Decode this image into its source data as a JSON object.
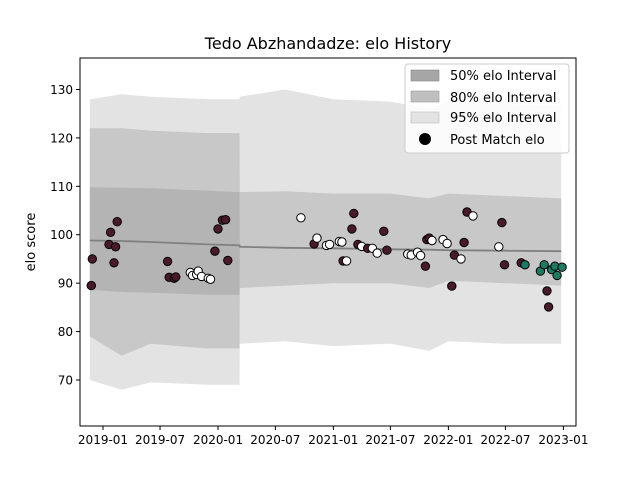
{
  "chart_data": {
    "type": "scatter",
    "title": "Tedo Abzhandadze: elo History",
    "xlabel": "",
    "ylabel": "elo score",
    "xlim": [
      "2018-10-20",
      "2023-02-10"
    ],
    "ylim": [
      60.5,
      136.5
    ],
    "x_ticks": [
      "2019-01",
      "2019-07",
      "2020-01",
      "2020-07",
      "2021-01",
      "2021-07",
      "2022-01",
      "2022-07",
      "2023-01"
    ],
    "x_tick_dates": [
      "2019-01-01",
      "2019-07-01",
      "2020-01-01",
      "2020-07-01",
      "2021-01-01",
      "2021-07-01",
      "2022-01-01",
      "2022-07-01",
      "2023-01-01"
    ],
    "y_ticks": [
      70,
      80,
      90,
      100,
      110,
      120,
      130
    ],
    "legend": {
      "position": "top-right",
      "entries": [
        "50% elo Interval",
        "80% elo Interval",
        "95% elo Interval",
        "Post Match elo"
      ]
    },
    "colors": {
      "band50": "#a6a6a6",
      "band80": "#bfbfbf",
      "band95": "#e3e3e3",
      "mean_line": "#808080",
      "loss": "#4a1a2c",
      "draw": "#ffffff",
      "win": "#1f7a63"
    },
    "bands": {
      "dates": [
        "2018-11-20",
        "2019-03-01",
        "2019-06-01",
        "2019-12-01",
        "2020-03-09",
        "2020-03-10",
        "2020-08-01",
        "2021-01-01",
        "2021-07-01",
        "2021-11-01",
        "2022-01-01",
        "2022-07-01",
        "2022-12-25"
      ],
      "mean": [
        98.8,
        98.7,
        98.5,
        98.0,
        97.8,
        97.5,
        97.3,
        97.2,
        97.0,
        96.9,
        96.8,
        96.7,
        96.6
      ],
      "p50_low": [
        88.6,
        88.2,
        88.0,
        87.6,
        87.6,
        97.5,
        97.3,
        97.2,
        97.0,
        96.9,
        96.8,
        96.7,
        96.6
      ],
      "p50_high": [
        109.8,
        109.7,
        109.6,
        109.1,
        108.8,
        97.5,
        97.3,
        97.2,
        97.0,
        96.9,
        96.8,
        96.7,
        96.6
      ],
      "p80_low": [
        79.0,
        75.0,
        77.5,
        76.5,
        76.5,
        89.0,
        89.5,
        90.0,
        90.0,
        89.0,
        90.5,
        90.0,
        89.5
      ],
      "p80_high": [
        122.0,
        122.0,
        121.5,
        121.0,
        121.0,
        108.8,
        109.0,
        108.5,
        108.5,
        107.5,
        108.5,
        108.0,
        107.5
      ],
      "p95_low": [
        70.0,
        68.0,
        69.5,
        69.0,
        69.0,
        77.5,
        78.0,
        77.0,
        77.5,
        76.0,
        78.0,
        77.5,
        77.5
      ],
      "p95_high": [
        128.0,
        129.0,
        128.5,
        128.0,
        128.0,
        128.5,
        130.0,
        128.0,
        127.5,
        126.0,
        127.5,
        127.0,
        126.5
      ]
    },
    "series": [
      {
        "name": "Post Match elo",
        "points": [
          {
            "date": "2018-11-25",
            "elo": 89.5,
            "result": "loss"
          },
          {
            "date": "2018-11-28",
            "elo": 95.0,
            "result": "loss"
          },
          {
            "date": "2019-01-20",
            "elo": 98.0,
            "result": "loss"
          },
          {
            "date": "2019-01-25",
            "elo": 100.5,
            "result": "loss"
          },
          {
            "date": "2019-02-05",
            "elo": 94.2,
            "result": "loss"
          },
          {
            "date": "2019-02-10",
            "elo": 97.5,
            "result": "loss"
          },
          {
            "date": "2019-02-15",
            "elo": 102.7,
            "result": "loss"
          },
          {
            "date": "2019-07-25",
            "elo": 94.5,
            "result": "loss"
          },
          {
            "date": "2019-07-30",
            "elo": 91.2,
            "result": "loss"
          },
          {
            "date": "2019-08-15",
            "elo": 91.0,
            "result": "loss"
          },
          {
            "date": "2019-08-20",
            "elo": 91.3,
            "result": "loss"
          },
          {
            "date": "2019-10-05",
            "elo": 92.2,
            "result": "draw"
          },
          {
            "date": "2019-10-12",
            "elo": 91.6,
            "result": "draw"
          },
          {
            "date": "2019-10-25",
            "elo": 91.8,
            "result": "draw"
          },
          {
            "date": "2019-10-30",
            "elo": 92.5,
            "result": "draw"
          },
          {
            "date": "2019-11-10",
            "elo": 91.4,
            "result": "draw"
          },
          {
            "date": "2019-12-01",
            "elo": 91.0,
            "result": "draw"
          },
          {
            "date": "2019-12-08",
            "elo": 90.8,
            "result": "draw"
          },
          {
            "date": "2019-12-22",
            "elo": 96.6,
            "result": "loss"
          },
          {
            "date": "2020-01-01",
            "elo": 101.2,
            "result": "loss"
          },
          {
            "date": "2020-01-15",
            "elo": 103.0,
            "result": "loss"
          },
          {
            "date": "2020-01-25",
            "elo": 103.1,
            "result": "loss"
          },
          {
            "date": "2020-02-01",
            "elo": 94.7,
            "result": "loss"
          },
          {
            "date": "2020-09-20",
            "elo": 103.5,
            "result": "draw"
          },
          {
            "date": "2020-11-01",
            "elo": 98.1,
            "result": "loss"
          },
          {
            "date": "2020-11-10",
            "elo": 99.3,
            "result": "draw"
          },
          {
            "date": "2020-12-10",
            "elo": 97.8,
            "result": "draw"
          },
          {
            "date": "2020-12-20",
            "elo": 98.0,
            "result": "draw"
          },
          {
            "date": "2021-01-20",
            "elo": 98.6,
            "result": "draw"
          },
          {
            "date": "2021-01-28",
            "elo": 98.5,
            "result": "draw"
          },
          {
            "date": "2021-02-01",
            "elo": 94.6,
            "result": "loss"
          },
          {
            "date": "2021-02-12",
            "elo": 94.6,
            "result": "draw"
          },
          {
            "date": "2021-03-01",
            "elo": 101.2,
            "result": "loss"
          },
          {
            "date": "2021-03-07",
            "elo": 104.4,
            "result": "loss"
          },
          {
            "date": "2021-03-20",
            "elo": 98.0,
            "result": "loss"
          },
          {
            "date": "2021-04-01",
            "elo": 97.6,
            "result": "draw"
          },
          {
            "date": "2021-04-20",
            "elo": 97.2,
            "result": "loss"
          },
          {
            "date": "2021-05-05",
            "elo": 97.2,
            "result": "draw"
          },
          {
            "date": "2021-05-20",
            "elo": 96.2,
            "result": "draw"
          },
          {
            "date": "2021-06-10",
            "elo": 100.7,
            "result": "loss"
          },
          {
            "date": "2021-06-20",
            "elo": 96.8,
            "result": "loss"
          },
          {
            "date": "2021-08-25",
            "elo": 96.0,
            "result": "draw"
          },
          {
            "date": "2021-09-05",
            "elo": 95.8,
            "result": "draw"
          },
          {
            "date": "2021-09-25",
            "elo": 96.4,
            "result": "draw"
          },
          {
            "date": "2021-10-05",
            "elo": 95.7,
            "result": "draw"
          },
          {
            "date": "2021-10-20",
            "elo": 93.5,
            "result": "loss"
          },
          {
            "date": "2021-10-25",
            "elo": 99.0,
            "result": "loss"
          },
          {
            "date": "2021-11-01",
            "elo": 99.3,
            "result": "loss"
          },
          {
            "date": "2021-11-10",
            "elo": 98.8,
            "result": "draw"
          },
          {
            "date": "2021-12-15",
            "elo": 99.0,
            "result": "draw"
          },
          {
            "date": "2021-12-28",
            "elo": 98.2,
            "result": "draw"
          },
          {
            "date": "2022-01-12",
            "elo": 89.4,
            "result": "loss"
          },
          {
            "date": "2022-01-20",
            "elo": 95.8,
            "result": "loss"
          },
          {
            "date": "2022-02-10",
            "elo": 95.0,
            "result": "draw"
          },
          {
            "date": "2022-02-20",
            "elo": 98.4,
            "result": "loss"
          },
          {
            "date": "2022-03-01",
            "elo": 104.7,
            "result": "loss"
          },
          {
            "date": "2022-03-20",
            "elo": 103.9,
            "result": "draw"
          },
          {
            "date": "2022-06-10",
            "elo": 97.5,
            "result": "draw"
          },
          {
            "date": "2022-06-20",
            "elo": 102.5,
            "result": "loss"
          },
          {
            "date": "2022-06-28",
            "elo": 93.8,
            "result": "loss"
          },
          {
            "date": "2022-08-20",
            "elo": 94.2,
            "result": "loss"
          },
          {
            "date": "2022-09-01",
            "elo": 93.8,
            "result": "win"
          },
          {
            "date": "2022-10-20",
            "elo": 92.5,
            "result": "win"
          },
          {
            "date": "2022-11-01",
            "elo": 93.8,
            "result": "win"
          },
          {
            "date": "2022-11-10",
            "elo": 88.4,
            "result": "loss"
          },
          {
            "date": "2022-11-15",
            "elo": 85.1,
            "result": "loss"
          },
          {
            "date": "2022-11-25",
            "elo": 92.8,
            "result": "win"
          },
          {
            "date": "2022-12-05",
            "elo": 93.5,
            "result": "win"
          },
          {
            "date": "2022-12-12",
            "elo": 91.6,
            "result": "win"
          },
          {
            "date": "2022-12-28",
            "elo": 93.3,
            "result": "win"
          }
        ]
      }
    ]
  }
}
